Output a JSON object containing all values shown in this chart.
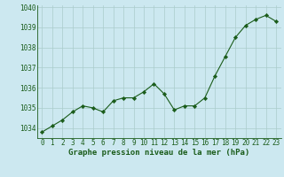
{
  "x": [
    0,
    1,
    2,
    3,
    4,
    5,
    6,
    7,
    8,
    9,
    10,
    11,
    12,
    13,
    14,
    15,
    16,
    17,
    18,
    19,
    20,
    21,
    22,
    23
  ],
  "y": [
    1033.8,
    1034.1,
    1034.4,
    1034.8,
    1035.1,
    1035.0,
    1034.8,
    1035.35,
    1035.5,
    1035.5,
    1035.8,
    1036.2,
    1035.7,
    1034.9,
    1035.1,
    1035.1,
    1035.5,
    1036.6,
    1037.55,
    1038.5,
    1039.1,
    1039.4,
    1039.6,
    1039.3
  ],
  "line_color": "#1a5c1a",
  "marker": "D",
  "marker_size": 2.2,
  "bg_color": "#cce8f0",
  "grid_color": "#aacccc",
  "xlabel": "Graphe pression niveau de la mer (hPa)",
  "xlabel_fontsize": 6.5,
  "xlabel_color": "#1a5c1a",
  "tick_fontsize": 5.5,
  "tick_color": "#1a5c1a",
  "ylim": [
    1033.5,
    1040.1
  ],
  "yticks": [
    1034,
    1035,
    1036,
    1037,
    1038,
    1039,
    1040
  ],
  "xlim": [
    -0.5,
    23.5
  ],
  "xticks": [
    0,
    1,
    2,
    3,
    4,
    5,
    6,
    7,
    8,
    9,
    10,
    11,
    12,
    13,
    14,
    15,
    16,
    17,
    18,
    19,
    20,
    21,
    22,
    23
  ]
}
